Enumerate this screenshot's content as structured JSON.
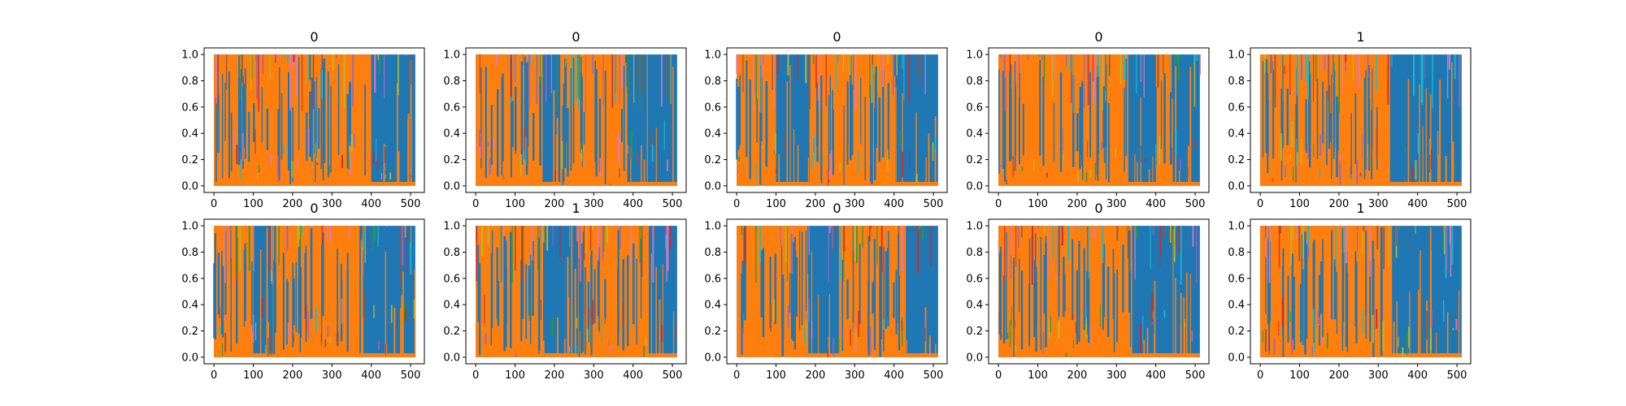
{
  "chart_data": [
    {
      "type": "line",
      "title": "0",
      "xticks": [
        "0",
        "100",
        "200",
        "300",
        "400",
        "500"
      ],
      "yticks": [
        "0.0",
        "0.2",
        "0.4",
        "0.6",
        "0.8",
        "1.0"
      ],
      "xlim": [
        -25,
        535
      ],
      "ylim": [
        -0.05,
        1.05
      ],
      "series": [
        {
          "color": "#1f77b4",
          "role": "background",
          "segments": [
            [
              0,
              512,
              "fill"
            ]
          ]
        },
        {
          "color": "#ff7f0e",
          "role": "dominant",
          "segments": [
            [
              0,
              400,
              "fill"
            ],
            [
              400,
              512,
              "low"
            ]
          ]
        }
      ]
    },
    {
      "type": "line",
      "title": "0",
      "xticks": [
        "0",
        "100",
        "200",
        "300",
        "400",
        "500"
      ],
      "yticks": [
        "0.0",
        "0.2",
        "0.4",
        "0.6",
        "0.8",
        "1.0"
      ],
      "xlim": [
        -25,
        535
      ],
      "ylim": [
        -0.05,
        1.05
      ],
      "series": [
        {
          "color": "#1f77b4",
          "role": "background",
          "segments": [
            [
              0,
              512,
              "fill"
            ]
          ]
        },
        {
          "color": "#ff7f0e",
          "role": "dominant",
          "segments": [
            [
              0,
              170,
              "fill"
            ],
            [
              170,
              215,
              "low"
            ],
            [
              215,
              380,
              "fill"
            ],
            [
              380,
              512,
              "low"
            ]
          ]
        }
      ]
    },
    {
      "type": "line",
      "title": "0",
      "xticks": [
        "0",
        "100",
        "200",
        "300",
        "400",
        "500"
      ],
      "yticks": [
        "0.0",
        "0.2",
        "0.4",
        "0.6",
        "0.8",
        "1.0"
      ],
      "xlim": [
        -25,
        535
      ],
      "ylim": [
        -0.05,
        1.05
      ],
      "series": [
        {
          "color": "#1f77b4",
          "role": "background",
          "segments": [
            [
              0,
              512,
              "fill"
            ]
          ]
        },
        {
          "color": "#ff7f0e",
          "role": "dominant",
          "segments": [
            [
              0,
              100,
              "fill"
            ],
            [
              100,
              185,
              "low"
            ],
            [
              185,
              400,
              "fill"
            ],
            [
              400,
              512,
              "low"
            ]
          ]
        }
      ]
    },
    {
      "type": "line",
      "title": "0",
      "xticks": [
        "0",
        "100",
        "200",
        "300",
        "400",
        "500"
      ],
      "yticks": [
        "0.0",
        "0.2",
        "0.4",
        "0.6",
        "0.8",
        "1.0"
      ],
      "xlim": [
        -25,
        535
      ],
      "ylim": [
        -0.05,
        1.05
      ],
      "series": [
        {
          "color": "#1f77b4",
          "role": "background",
          "segments": [
            [
              0,
              512,
              "fill"
            ]
          ]
        },
        {
          "color": "#ff7f0e",
          "role": "dominant",
          "segments": [
            [
              0,
              330,
              "fill"
            ],
            [
              330,
              400,
              "low"
            ],
            [
              400,
              440,
              "fill"
            ],
            [
              440,
              512,
              "low"
            ]
          ]
        }
      ]
    },
    {
      "type": "line",
      "title": "1",
      "xticks": [
        "0",
        "100",
        "200",
        "300",
        "400",
        "500"
      ],
      "yticks": [
        "0.0",
        "0.2",
        "0.4",
        "0.6",
        "0.8",
        "1.0"
      ],
      "xlim": [
        -25,
        535
      ],
      "ylim": [
        -0.05,
        1.05
      ],
      "series": [
        {
          "color": "#1f77b4",
          "role": "background",
          "segments": [
            [
              0,
              512,
              "fill"
            ]
          ]
        },
        {
          "color": "#ff7f0e",
          "role": "dominant",
          "segments": [
            [
              0,
              330,
              "fill"
            ],
            [
              330,
              512,
              "low"
            ]
          ]
        }
      ]
    },
    {
      "type": "line",
      "title": "0",
      "xticks": [
        "0",
        "100",
        "200",
        "300",
        "400",
        "500"
      ],
      "yticks": [
        "0.0",
        "0.2",
        "0.4",
        "0.6",
        "0.8",
        "1.0"
      ],
      "xlim": [
        -25,
        535
      ],
      "ylim": [
        -0.05,
        1.05
      ],
      "series": [
        {
          "color": "#1f77b4",
          "role": "background",
          "segments": [
            [
              0,
              512,
              "fill"
            ]
          ]
        },
        {
          "color": "#ff7f0e",
          "role": "dominant",
          "segments": [
            [
              0,
              100,
              "fill"
            ],
            [
              100,
              150,
              "low"
            ],
            [
              150,
              370,
              "fill"
            ],
            [
              370,
              512,
              "low"
            ]
          ]
        }
      ]
    },
    {
      "type": "line",
      "title": "1",
      "xticks": [
        "0",
        "100",
        "200",
        "300",
        "400",
        "500"
      ],
      "yticks": [
        "0.0",
        "0.2",
        "0.4",
        "0.6",
        "0.8",
        "1.0"
      ],
      "xlim": [
        -25,
        535
      ],
      "ylim": [
        -0.05,
        1.05
      ],
      "series": [
        {
          "color": "#1f77b4",
          "role": "background",
          "segments": [
            [
              0,
              512,
              "fill"
            ]
          ]
        },
        {
          "color": "#ff7f0e",
          "role": "dominant",
          "segments": [
            [
              0,
              175,
              "fill"
            ],
            [
              175,
              260,
              "low"
            ],
            [
              260,
              440,
              "fill"
            ],
            [
              440,
              512,
              "low"
            ]
          ]
        }
      ]
    },
    {
      "type": "line",
      "title": "0",
      "xticks": [
        "0",
        "100",
        "200",
        "300",
        "400",
        "500"
      ],
      "yticks": [
        "0.0",
        "0.2",
        "0.4",
        "0.6",
        "0.8",
        "1.0"
      ],
      "xlim": [
        -25,
        535
      ],
      "ylim": [
        -0.05,
        1.05
      ],
      "series": [
        {
          "color": "#1f77b4",
          "role": "background",
          "segments": [
            [
              0,
              512,
              "fill"
            ]
          ]
        },
        {
          "color": "#ff7f0e",
          "role": "dominant",
          "segments": [
            [
              0,
              180,
              "fill"
            ],
            [
              180,
              260,
              "low"
            ],
            [
              260,
              430,
              "fill"
            ],
            [
              430,
              512,
              "low"
            ]
          ]
        }
      ]
    },
    {
      "type": "line",
      "title": "0",
      "xticks": [
        "0",
        "100",
        "200",
        "300",
        "400",
        "500"
      ],
      "yticks": [
        "0.0",
        "0.2",
        "0.4",
        "0.6",
        "0.8",
        "1.0"
      ],
      "xlim": [
        -25,
        535
      ],
      "ylim": [
        -0.05,
        1.05
      ],
      "series": [
        {
          "color": "#1f77b4",
          "role": "background",
          "segments": [
            [
              0,
              512,
              "fill"
            ]
          ]
        },
        {
          "color": "#ff7f0e",
          "role": "dominant",
          "segments": [
            [
              0,
              340,
              "fill"
            ],
            [
              340,
              512,
              "low"
            ]
          ]
        }
      ]
    },
    {
      "type": "line",
      "title": "1",
      "xticks": [
        "0",
        "100",
        "200",
        "300",
        "400",
        "500"
      ],
      "yticks": [
        "0.0",
        "0.2",
        "0.4",
        "0.6",
        "0.8",
        "1.0"
      ],
      "xlim": [
        -25,
        535
      ],
      "ylim": [
        -0.05,
        1.05
      ],
      "series": [
        {
          "color": "#1f77b4",
          "role": "background",
          "segments": [
            [
              0,
              512,
              "fill"
            ]
          ]
        },
        {
          "color": "#ff7f0e",
          "role": "dominant",
          "segments": [
            [
              0,
              335,
              "fill"
            ],
            [
              335,
              512,
              "low"
            ]
          ]
        }
      ]
    }
  ],
  "palette": {
    "noise": [
      "#2ca02c",
      "#17becf",
      "#bcbd22",
      "#9467bd",
      "#e377c2",
      "#8c564b",
      "#d62728"
    ]
  }
}
